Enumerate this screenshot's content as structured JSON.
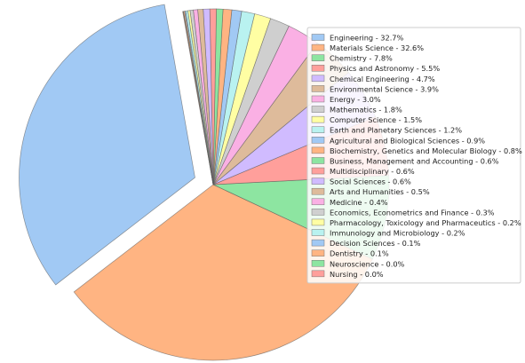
{
  "chart_data": {
    "type": "pie",
    "title": "",
    "legend_placement": "right",
    "exploded_slice": "Engineering",
    "series": [
      {
        "label": "Engineering - 32.7%",
        "name": "Engineering",
        "value": 32.7,
        "color": "#a1c9f4"
      },
      {
        "label": "Materials Science - 32.6%",
        "name": "Materials Science",
        "value": 32.6,
        "color": "#ffb482"
      },
      {
        "label": "Chemistry - 7.8%",
        "name": "Chemistry",
        "value": 7.8,
        "color": "#8de5a1"
      },
      {
        "label": "Physics and Astronomy - 5.5%",
        "name": "Physics and Astronomy",
        "value": 5.5,
        "color": "#ff9f9b"
      },
      {
        "label": "Chemical Engineering - 4.7%",
        "name": "Chemical Engineering",
        "value": 4.7,
        "color": "#d0bbff"
      },
      {
        "label": "Environmental Science - 3.9%",
        "name": "Environmental Science",
        "value": 3.9,
        "color": "#debb9b"
      },
      {
        "label": "Energy - 3.0%",
        "name": "Energy",
        "value": 3.0,
        "color": "#fab0e4"
      },
      {
        "label": "Mathematics - 1.8%",
        "name": "Mathematics",
        "value": 1.8,
        "color": "#cfcfcf"
      },
      {
        "label": "Computer Science - 1.5%",
        "name": "Computer Science",
        "value": 1.5,
        "color": "#fffea3"
      },
      {
        "label": "Earth and Planetary Sciences - 1.2%",
        "name": "Earth and Planetary Sciences",
        "value": 1.2,
        "color": "#b9f2f0"
      },
      {
        "label": "Agricultural and Biological Sciences - 0.9%",
        "name": "Agricultural and Biological Sciences",
        "value": 0.9,
        "color": "#a1c9f4"
      },
      {
        "label": "Biochemistry, Genetics and Molecular Biology - 0.8%",
        "name": "Biochemistry, Genetics and Molecular Biology",
        "value": 0.8,
        "color": "#ffb482"
      },
      {
        "label": "Business, Management and Accounting - 0.6%",
        "name": "Business, Management and Accounting",
        "value": 0.6,
        "color": "#8de5a1"
      },
      {
        "label": "Multidisciplinary - 0.6%",
        "name": "Multidisciplinary",
        "value": 0.6,
        "color": "#ff9f9b"
      },
      {
        "label": "Social Sciences - 0.6%",
        "name": "Social Sciences",
        "value": 0.6,
        "color": "#d0bbff"
      },
      {
        "label": "Arts and Humanities - 0.5%",
        "name": "Arts and Humanities",
        "value": 0.5,
        "color": "#debb9b"
      },
      {
        "label": "Medicine - 0.4%",
        "name": "Medicine",
        "value": 0.4,
        "color": "#fab0e4"
      },
      {
        "label": "Economics, Econometrics and Finance - 0.3%",
        "name": "Economics, Econometrics and Finance",
        "value": 0.3,
        "color": "#cfcfcf"
      },
      {
        "label": "Pharmacology, Toxicology and Pharmaceutics - 0.2%",
        "name": "Pharmacology, Toxicology and Pharmaceutics",
        "value": 0.2,
        "color": "#fffea3"
      },
      {
        "label": "Immunology and Microbiology - 0.2%",
        "name": "Immunology and Microbiology",
        "value": 0.2,
        "color": "#b9f2f0"
      },
      {
        "label": "Decision Sciences - 0.1%",
        "name": "Decision Sciences",
        "value": 0.1,
        "color": "#a1c9f4"
      },
      {
        "label": "Dentistry - 0.1%",
        "name": "Dentistry",
        "value": 0.1,
        "color": "#ffb482"
      },
      {
        "label": "Neuroscience - 0.0%",
        "name": "Neuroscience",
        "value": 0.04,
        "color": "#8de5a1"
      },
      {
        "label": "Nursing - 0.0%",
        "name": "Nursing",
        "value": 0.03,
        "color": "#ff9f9b"
      }
    ]
  }
}
